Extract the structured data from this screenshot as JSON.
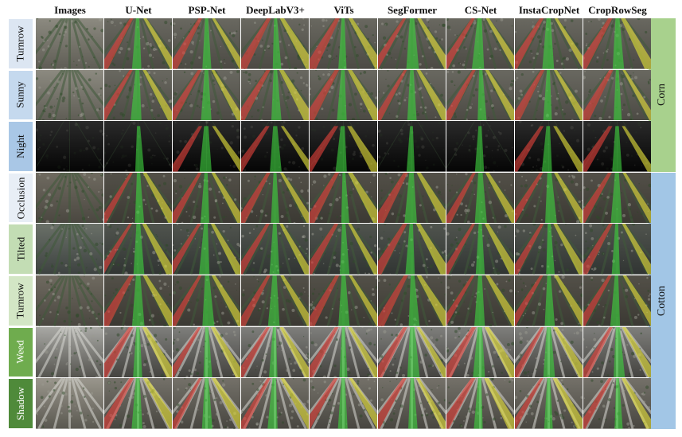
{
  "columns": [
    "Images",
    "U-Net",
    "PSP-Net",
    "DeepLabV3+",
    "ViTs",
    "SegFormer",
    "CS-Net",
    "InstaCropNet",
    "CropRowSeg"
  ],
  "rows": [
    {
      "label": "Turnrow",
      "label_color": "#dce6f2",
      "scene": "corn"
    },
    {
      "label": "Sunny",
      "label_color": "#c5d9ee",
      "scene": "corn"
    },
    {
      "label": "Night",
      "label_color": "#a9c7e6",
      "scene": "night"
    },
    {
      "label": "Occlusion",
      "label_color": "#e8eef6",
      "scene": "cotton"
    },
    {
      "label": "Tilted",
      "label_color": "#c3ddb4",
      "scene": "tilted"
    },
    {
      "label": "Turnrow",
      "label_color": "#d3e6c5",
      "scene": "cotton"
    },
    {
      "label": "Weed",
      "label_color": "#6fac4e",
      "scene": "weed"
    },
    {
      "label": "Shadow",
      "label_color": "#4f8a3a",
      "scene": "shadow"
    }
  ],
  "groups": [
    {
      "label": "Corn",
      "color": "#a8d18d",
      "rows": [
        0,
        2
      ]
    },
    {
      "label": "Cotton",
      "color": "#a2c6e6",
      "rows": [
        3,
        7
      ]
    }
  ],
  "overlay_colors": {
    "red": "#e0413a",
    "green": "#3fd23f",
    "yellow": "#e3de3a"
  }
}
